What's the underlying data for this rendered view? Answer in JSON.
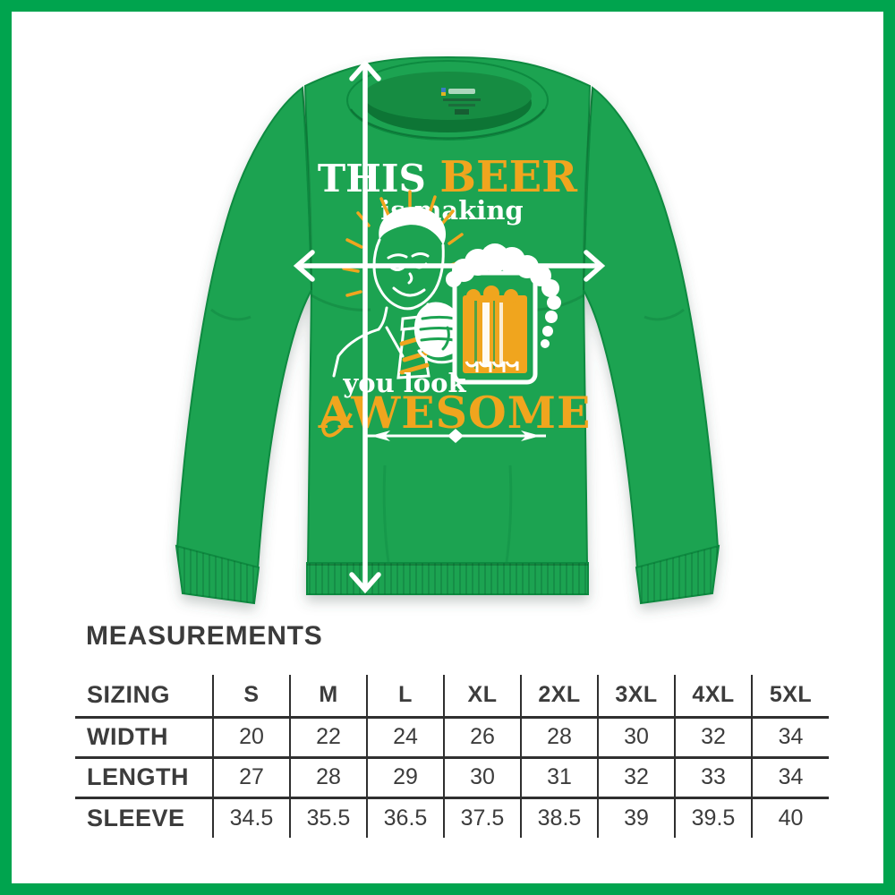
{
  "page": {
    "frame_color": "#00a44e",
    "background_color": "#ffffff"
  },
  "product": {
    "item": "green crewneck sweatshirt with beer print",
    "shirt_color": "#1ca351",
    "print": {
      "word_this": "THIS",
      "word_beer": "BEER",
      "line_is_making": "is making",
      "line_you_look": "you look",
      "word_awesome": "AWESOME",
      "white": "#ffffff",
      "gold": "#f0a51e"
    },
    "arrows": {
      "color": "#ffffff",
      "vertical_meaning": "length",
      "horizontal_meaning": "width"
    }
  },
  "measurements": {
    "heading": "MEASUREMENTS",
    "table": {
      "columns": [
        "SIZING",
        "S",
        "M",
        "L",
        "XL",
        "2XL",
        "3XL",
        "4XL",
        "5XL"
      ],
      "rows": [
        {
          "label": "WIDTH",
          "values": [
            "20",
            "22",
            "24",
            "26",
            "28",
            "30",
            "32",
            "34"
          ]
        },
        {
          "label": "LENGTH",
          "values": [
            "27",
            "28",
            "29",
            "30",
            "31",
            "32",
            "33",
            "34"
          ]
        },
        {
          "label": "SLEEVE",
          "values": [
            "34.5",
            "35.5",
            "36.5",
            "37.5",
            "38.5",
            "39",
            "39.5",
            "40"
          ]
        }
      ]
    }
  },
  "chart_data": {
    "type": "table",
    "title": "MEASUREMENTS",
    "columns": [
      "SIZING",
      "S",
      "M",
      "L",
      "XL",
      "2XL",
      "3XL",
      "4XL",
      "5XL"
    ],
    "rows": [
      [
        "WIDTH",
        20,
        22,
        24,
        26,
        28,
        30,
        32,
        34
      ],
      [
        "LENGTH",
        27,
        28,
        29,
        30,
        31,
        32,
        33,
        34
      ],
      [
        "SLEEVE",
        34.5,
        35.5,
        36.5,
        37.5,
        38.5,
        39,
        39.5,
        40
      ]
    ]
  }
}
